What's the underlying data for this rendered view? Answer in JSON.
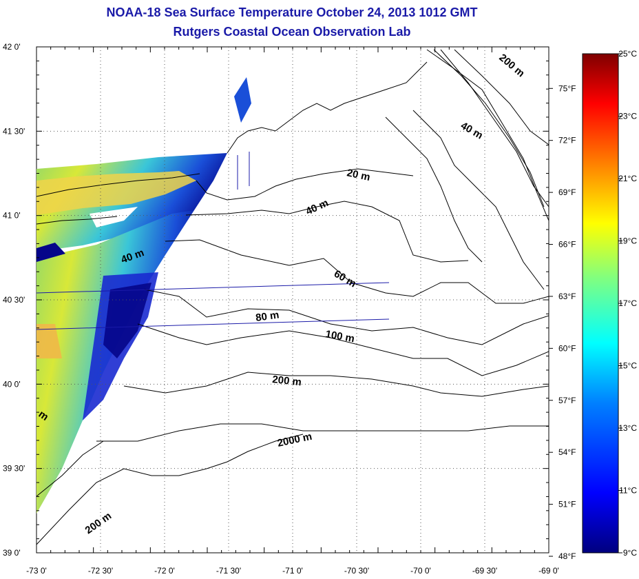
{
  "title": "NOAA-18 Sea Surface Temperature October 24, 2013 1012 GMT",
  "subtitle": "Rutgers Coastal Ocean Observation Lab",
  "lat_ticks": [
    "42 0'",
    "41 30'",
    "41 0'",
    "40 30'",
    "40 0'",
    "39 30'",
    "39 0'"
  ],
  "lon_ticks": [
    "-73 0'",
    "-72 30'",
    "-72 0'",
    "-71 30'",
    "-71 0'",
    "-70 30'",
    "-70 0'",
    "-69 30'",
    "-69 0'"
  ],
  "fahrenheit_ticks": [
    "75°F",
    "72°F",
    "69°F",
    "66°F",
    "63°F",
    "60°F",
    "57°F",
    "54°F",
    "51°F",
    "48°F"
  ],
  "colorbar": {
    "celsius_ticks": [
      "25°C",
      "23°C",
      "21°C",
      "19°C",
      "17°C",
      "15°C",
      "13°C",
      "11°C",
      "9°C"
    ],
    "min_c": 9,
    "max_c": 25,
    "colors": [
      "#00007f",
      "#0000ff",
      "#0080ff",
      "#00ffff",
      "#80ff80",
      "#ffff00",
      "#ff8000",
      "#ff0000",
      "#7f0000"
    ]
  },
  "depth_labels": [
    "200 m",
    "40 m",
    "20 m",
    "40 m",
    "40 m",
    "60 m",
    "80 m",
    "100 m",
    "200 m",
    "2000 m",
    "200 m",
    "m"
  ]
}
